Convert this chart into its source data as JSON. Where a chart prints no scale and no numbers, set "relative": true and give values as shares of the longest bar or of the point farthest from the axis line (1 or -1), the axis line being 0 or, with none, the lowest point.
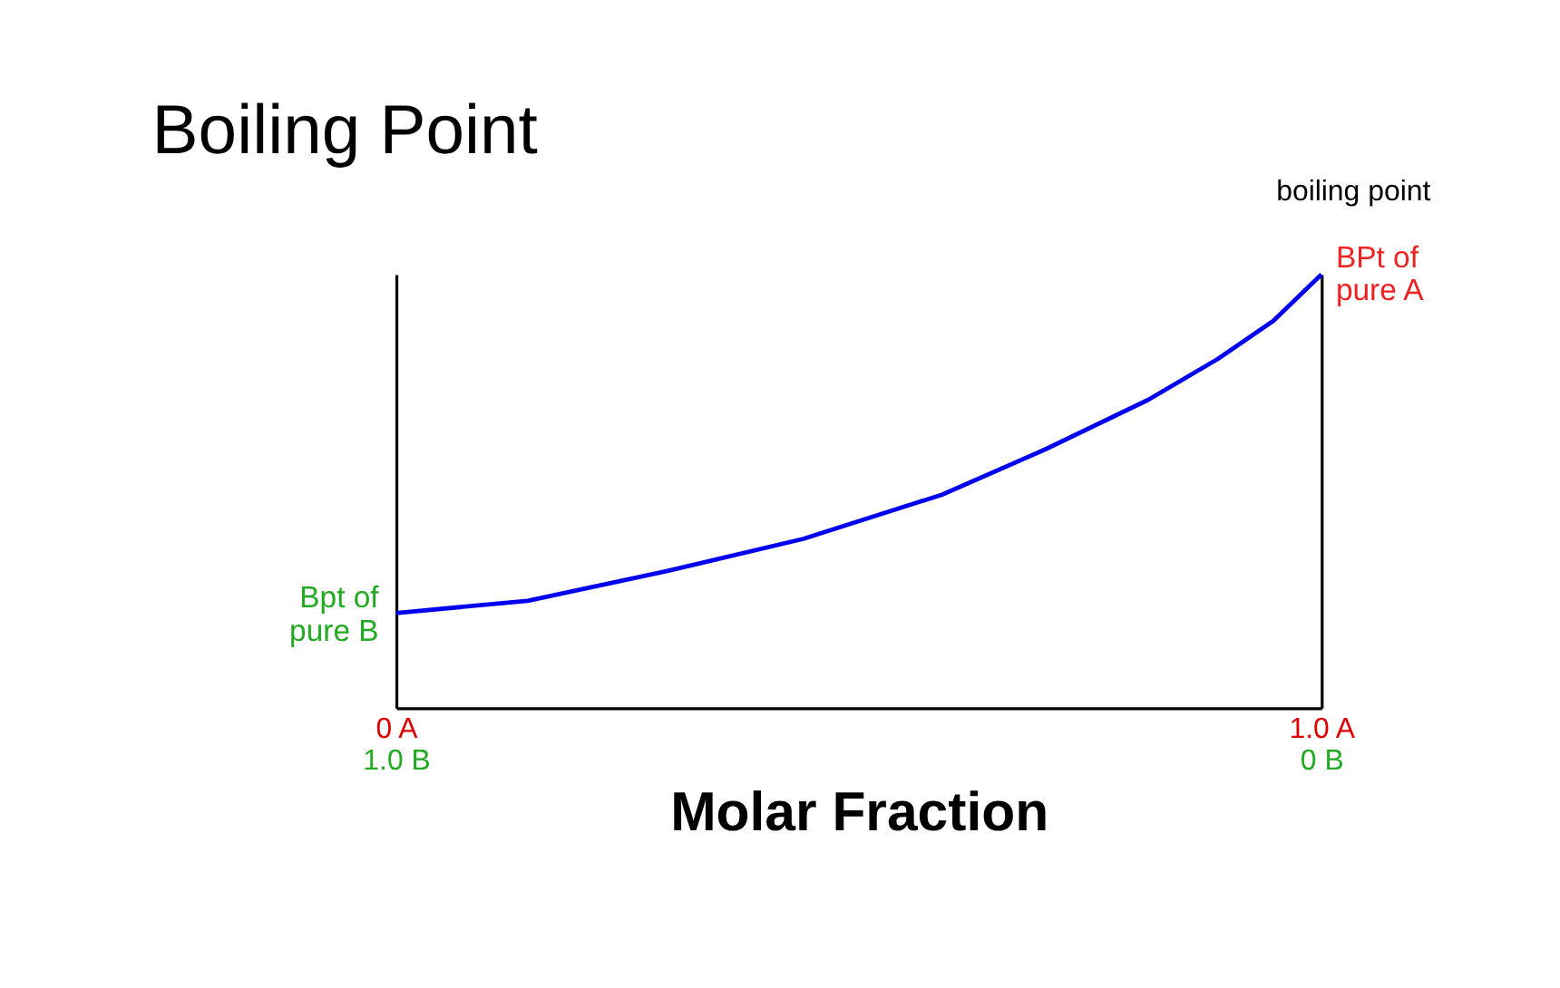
{
  "chart_data": {
    "type": "line",
    "title": "Boiling Point",
    "xlabel": "Molar Fraction",
    "ylabel": "boiling point",
    "relative": true,
    "xlim": [
      0,
      1
    ],
    "xticks": [
      {
        "value": 0,
        "label": "0 A"
      },
      {
        "value": 1,
        "label": "1.0 A"
      }
    ],
    "x2lim": [
      1,
      0
    ],
    "x2ticks": [
      {
        "value": 1,
        "label": "1.0 B"
      },
      {
        "value": 0,
        "label": "0 B"
      }
    ],
    "series": [
      {
        "color": "#0000ee",
        "x": [
          0,
          0.142,
          0.291,
          0.44,
          0.59,
          0.701,
          0.813,
          0.888,
          0.948,
          1
        ],
        "values": [
          0.219,
          0.247,
          0.315,
          0.39,
          0.492,
          0.596,
          0.711,
          0.805,
          0.893,
          1
        ]
      }
    ],
    "annotations": [
      {
        "text": "Bpt of\npure B",
        "x": 0,
        "y": 0.219
      },
      {
        "text": "BPt of\npure A",
        "x": 1,
        "y": 1
      }
    ],
    "grid": false,
    "marker": "none",
    "line_style": "solid"
  }
}
